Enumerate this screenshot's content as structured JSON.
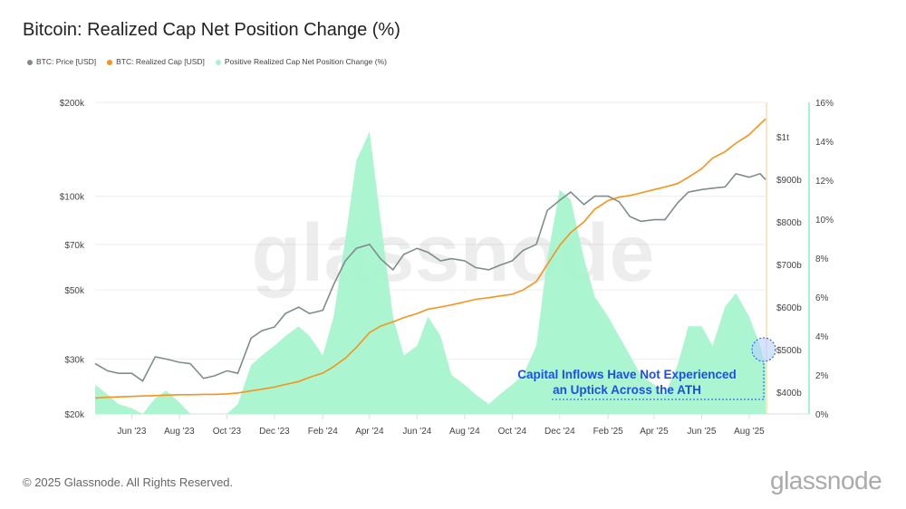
{
  "title": "Bitcoin: Realized Cap Net Position Change (%)",
  "footer": "© 2025 Glassnode. All Rights Reserved.",
  "logo": "glassnode",
  "watermark": "glassnode",
  "chart_data": {
    "type": "line",
    "title": "Bitcoin: Realized Cap Net Position Change (%)",
    "legend_placement": "top-left",
    "grid": true,
    "x_ticks": [
      "Jun '23",
      "Aug '23",
      "Oct '23",
      "Dec '23",
      "Feb '24",
      "Apr '24",
      "Jun '24",
      "Aug '24",
      "Oct '24",
      "Dec '24",
      "Feb '25",
      "Apr '25",
      "Jun '25",
      "Aug '25"
    ],
    "x_tick_dates": [
      "2023-06-01",
      "2023-08-01",
      "2023-10-01",
      "2023-12-01",
      "2024-02-01",
      "2024-04-01",
      "2024-06-01",
      "2024-08-01",
      "2024-10-01",
      "2024-12-01",
      "2025-02-01",
      "2025-04-01",
      "2025-06-01",
      "2025-08-01"
    ],
    "xlim": [
      "2023-04-15",
      "2025-08-22"
    ],
    "y_left": {
      "scale": "log",
      "range": [
        20000,
        200000
      ],
      "ticks": [
        20000,
        30000,
        50000,
        70000,
        100000,
        200000
      ],
      "tick_labels": [
        "$20k",
        "$30k",
        "$50k",
        "$70k",
        "$100k",
        "$200k"
      ]
    },
    "y_right_cap": {
      "scale": "linear",
      "unit": "billion USD",
      "ticks": [
        400,
        500,
        600,
        700,
        800,
        900,
        1000
      ],
      "tick_labels": [
        "$400b",
        "$500b",
        "$600b",
        "$700b",
        "$800b",
        "$900b",
        "$1t"
      ]
    },
    "y_right_pct": {
      "scale": "linear",
      "range": [
        0,
        16
      ],
      "ticks": [
        0,
        2,
        4,
        6,
        8,
        10,
        12,
        14,
        16
      ],
      "tick_labels": [
        "0%",
        "2%",
        "4%",
        "6%",
        "8%",
        "10%",
        "12%",
        "14%",
        "16%"
      ]
    },
    "dates": [
      "2023-04-15",
      "2023-05-01",
      "2023-05-15",
      "2023-06-01",
      "2023-06-15",
      "2023-07-01",
      "2023-07-15",
      "2023-08-01",
      "2023-08-15",
      "2023-09-01",
      "2023-09-15",
      "2023-10-01",
      "2023-10-15",
      "2023-11-01",
      "2023-11-15",
      "2023-12-01",
      "2023-12-15",
      "2024-01-01",
      "2024-01-15",
      "2024-02-01",
      "2024-02-15",
      "2024-03-01",
      "2024-03-15",
      "2024-04-01",
      "2024-04-15",
      "2024-05-01",
      "2024-05-15",
      "2024-06-01",
      "2024-06-15",
      "2024-07-01",
      "2024-07-15",
      "2024-08-01",
      "2024-08-15",
      "2024-09-01",
      "2024-09-15",
      "2024-10-01",
      "2024-10-15",
      "2024-11-01",
      "2024-11-15",
      "2024-12-01",
      "2024-12-15",
      "2025-01-01",
      "2025-01-15",
      "2025-02-01",
      "2025-02-15",
      "2025-03-01",
      "2025-03-15",
      "2025-04-01",
      "2025-04-15",
      "2025-05-01",
      "2025-05-15",
      "2025-06-01",
      "2025-06-15",
      "2025-07-01",
      "2025-07-15",
      "2025-08-01",
      "2025-08-15",
      "2025-08-22"
    ],
    "series": [
      {
        "name": "BTC: Price [USD]",
        "axis": "left",
        "color": "#7f8c8d",
        "values": [
          29000,
          27500,
          27000,
          27000,
          25500,
          30500,
          30000,
          29300,
          29000,
          26000,
          26500,
          27500,
          27000,
          35000,
          37000,
          38000,
          42000,
          44000,
          42000,
          43000,
          52000,
          62000,
          68000,
          70000,
          63000,
          58000,
          65000,
          68000,
          66000,
          62000,
          63000,
          62000,
          59000,
          58000,
          60000,
          62000,
          67000,
          70000,
          90000,
          97000,
          103000,
          94000,
          100000,
          100000,
          96000,
          86000,
          83000,
          84000,
          84000,
          95000,
          103000,
          105000,
          106000,
          107000,
          118000,
          115000,
          118000,
          113000
        ]
      },
      {
        "name": "BTC: Realized Cap [USD]",
        "axis": "right_cap",
        "color": "#f7931a",
        "values": [
          386,
          388,
          389,
          390,
          391,
          392,
          393,
          394,
          394,
          395,
          395,
          396,
          398,
          403,
          407,
          412,
          418,
          425,
          435,
          445,
          460,
          480,
          505,
          540,
          555,
          565,
          575,
          585,
          595,
          600,
          605,
          612,
          618,
          622,
          626,
          630,
          640,
          660,
          700,
          745,
          775,
          800,
          830,
          850,
          858,
          862,
          868,
          876,
          882,
          890,
          905,
          925,
          950,
          965,
          985,
          1005,
          1030,
          1042
        ]
      },
      {
        "name": "Positive Realized Cap Net Position Change (%)",
        "axis": "right_pct",
        "color": "#a6f4ce",
        "type": "area",
        "values": [
          1.5,
          1,
          0.5,
          0.3,
          0,
          0.8,
          1.2,
          0.6,
          0,
          0,
          0,
          0,
          0.5,
          2.5,
          3,
          3.5,
          4,
          4.5,
          4,
          3,
          5,
          9,
          13,
          14.5,
          10,
          5,
          3,
          3.5,
          5,
          4,
          2,
          1.5,
          1,
          0.5,
          1,
          1.5,
          2,
          3.5,
          8,
          11.5,
          11,
          8,
          6,
          5,
          4,
          3,
          2,
          1.5,
          1,
          2.5,
          4.5,
          4.5,
          3.5,
          5.5,
          6.2,
          5,
          3.5,
          2.5
        ]
      }
    ],
    "annotation": {
      "lines": [
        "Capital Inflows Have Not Experienced",
        "an Uptick Across the ATH"
      ],
      "color": "#1a4ff0"
    }
  }
}
